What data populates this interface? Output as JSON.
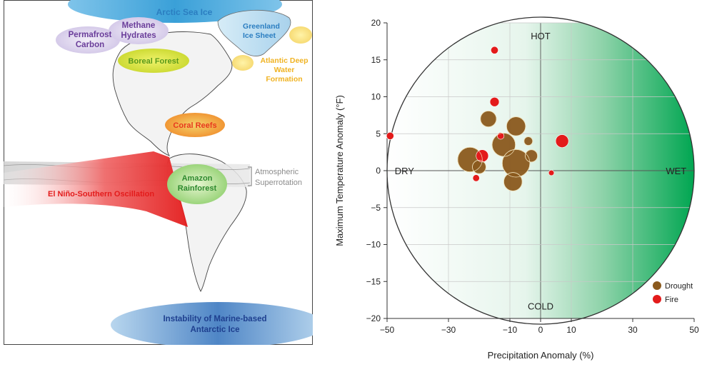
{
  "map": {
    "labels": {
      "arctic": "Arctic Sea Ice",
      "greenland": [
        "Greenland",
        "Ice Sheet"
      ],
      "permafrost": [
        "Permafrost",
        "Carbon"
      ],
      "methane": [
        "Methane",
        "Hydrates"
      ],
      "boreal": "Boreal Forest",
      "atlantic": [
        "Atlantic Deep",
        "Water",
        "Formation"
      ],
      "coral": "Coral Reefs",
      "amazon": [
        "Amazon",
        "Rainforest"
      ],
      "atmospheric": [
        "Atmospheric",
        "Superrotation"
      ],
      "enso": "El Niño-Southern Oscillation",
      "antarctic": [
        "Instability of Marine-based",
        "Antarctic Ice"
      ]
    },
    "colors": {
      "arctic": "#3aa0d8",
      "greenland": "#2b7ec1",
      "permafrost": "#6a3d9a",
      "methane": "#6a3d9a",
      "boreal": "#5a9a1a",
      "atlantic": "#f0b323",
      "coral": "#e8381e",
      "amazon": "#2e8a2e",
      "atmospheric": "#8c8c8c",
      "enso": "#e31b1b",
      "antarctic": "#1e3f8f"
    }
  },
  "chart_data": {
    "type": "scatter",
    "title": "",
    "xlabel": "Precipitation Anomaly (%)",
    "ylabel": "Maximum Temperature Anomaly (°F)",
    "xlim": [
      -50,
      50
    ],
    "ylim": [
      -20,
      20
    ],
    "xticks": [
      -50,
      -30,
      -10,
      0,
      10,
      30,
      50
    ],
    "yticks": [
      20,
      15,
      10,
      5,
      0,
      -5,
      -10,
      -15,
      -20
    ],
    "quadrant_labels": {
      "top": "HOT",
      "bottom": "COLD",
      "left": "DRY",
      "right": "WET"
    },
    "legend": {
      "position": "bottom-right",
      "entries": [
        "Drought",
        "Fire"
      ]
    },
    "colors": {
      "drought": "#8b5a1e",
      "fire": "#e31b1b",
      "wet": "#00a651"
    },
    "series": [
      {
        "name": "Drought",
        "points": [
          {
            "x": -12,
            "y": 3.5,
            "size": 3.8
          },
          {
            "x": -8,
            "y": 1,
            "size": 4.5
          },
          {
            "x": -23,
            "y": 1.5,
            "size": 4.0
          },
          {
            "x": -9,
            "y": -1.5,
            "size": 3.0
          },
          {
            "x": -17,
            "y": 7,
            "size": 2.6
          },
          {
            "x": -8,
            "y": 6,
            "size": 3.1
          },
          {
            "x": -20,
            "y": 0.5,
            "size": 2.2
          },
          {
            "x": -4,
            "y": 4,
            "size": 1.4
          },
          {
            "x": -3,
            "y": 2,
            "size": 2.0
          }
        ]
      },
      {
        "name": "Fire",
        "points": [
          {
            "x": -49,
            "y": 4.7,
            "size": 1.2
          },
          {
            "x": -15,
            "y": 16.3,
            "size": 1.2
          },
          {
            "x": -15,
            "y": 9.3,
            "size": 1.5
          },
          {
            "x": 7,
            "y": 4,
            "size": 2.1
          },
          {
            "x": -13,
            "y": 4.7,
            "size": 1.1
          },
          {
            "x": -19,
            "y": 2,
            "size": 2.0
          },
          {
            "x": -21,
            "y": -1,
            "size": 1.1
          },
          {
            "x": 3.5,
            "y": -0.3,
            "size": 0.9
          }
        ]
      }
    ]
  }
}
